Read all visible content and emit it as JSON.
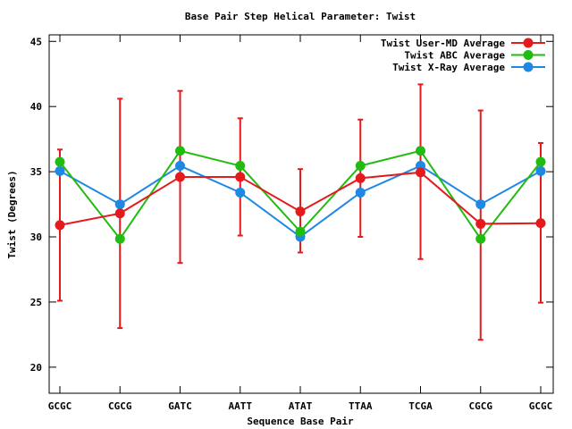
{
  "chart_data": {
    "type": "line",
    "title": "Base Pair Step Helical Parameter: Twist",
    "xlabel": "Sequence Base Pair",
    "ylabel": "Twist (Degrees)",
    "categories": [
      "GCGC",
      "CGCG",
      "GATC",
      "AATT",
      "ATAT",
      "TTAA",
      "TCGA",
      "CGCG",
      "GCGC"
    ],
    "ylim": [
      18,
      45.5
    ],
    "yticks": [
      20,
      25,
      30,
      35,
      40,
      45
    ],
    "grid": false,
    "legend_position": "top-right",
    "series": [
      {
        "name": "Twist User-MD Average",
        "color": "#e41a1c",
        "values": [
          30.9,
          31.8,
          34.6,
          34.6,
          31.95,
          34.5,
          34.95,
          31.0,
          31.05
        ],
        "error_low": [
          25.1,
          23.0,
          28.0,
          30.1,
          28.8,
          30.0,
          28.3,
          22.1,
          24.95
        ],
        "error_high": [
          36.7,
          40.6,
          41.2,
          39.1,
          35.2,
          39.0,
          41.7,
          39.7,
          37.2
        ]
      },
      {
        "name": "Twist ABC Average",
        "color": "#22bb11",
        "values": [
          35.75,
          29.85,
          36.6,
          35.45,
          30.4,
          35.45,
          36.6,
          29.85,
          35.75
        ]
      },
      {
        "name": "Twist X-Ray Average",
        "color": "#1e88e5",
        "values": [
          35.05,
          32.5,
          35.45,
          33.4,
          30.0,
          33.4,
          35.45,
          32.5,
          35.05
        ]
      }
    ]
  }
}
